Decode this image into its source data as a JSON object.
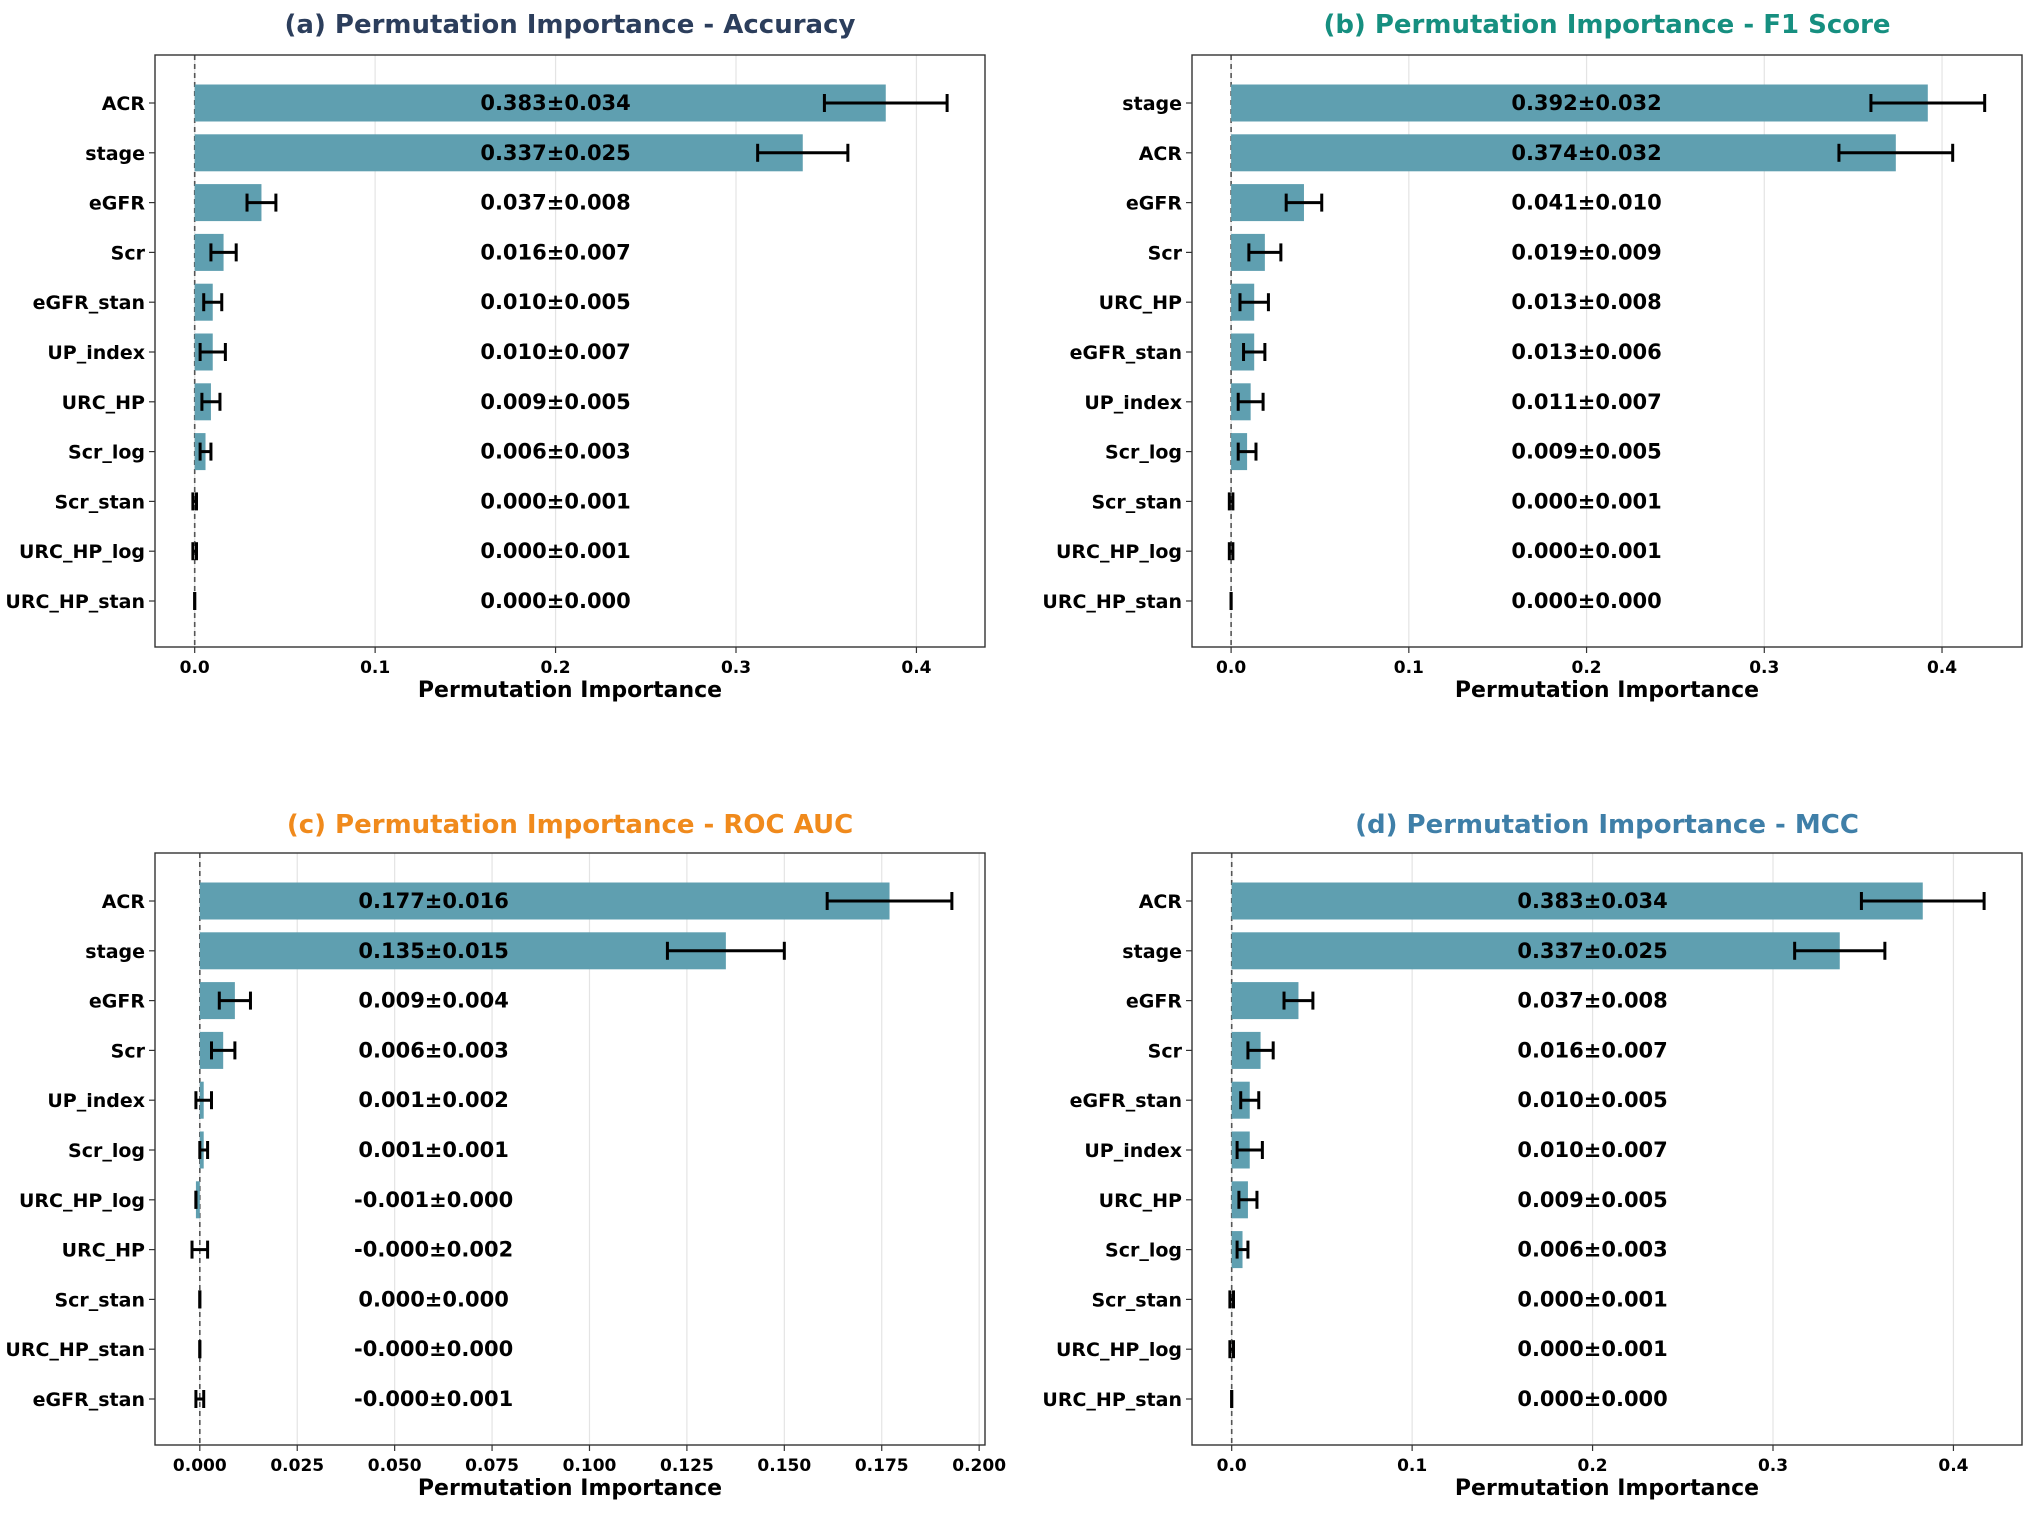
{
  "colors": {
    "bar": "#5f9fb0",
    "grid": "#e4e4e4",
    "axis": "#333333",
    "error": "#000000",
    "zero_line": "#555555"
  },
  "chart_data": [
    {
      "type": "bar",
      "orientation": "horizontal",
      "title": "(a) Permutation Importance - Accuracy",
      "title_color": "#2c3e5c",
      "xlabel": "Permutation Importance",
      "ylabel": "",
      "xlim": [
        -0.022,
        0.438
      ],
      "xticks": [
        0.0,
        0.1,
        0.2,
        0.3,
        0.4
      ],
      "xtick_labels": [
        "0.0",
        "0.1",
        "0.2",
        "0.3",
        "0.4"
      ],
      "grid": "x",
      "categories": [
        "ACR",
        "stage",
        "eGFR",
        "Scr",
        "eGFR_stan",
        "UP_index",
        "URC_HP",
        "Scr_log",
        "Scr_stan",
        "URC_HP_log",
        "URC_HP_stan"
      ],
      "values": [
        0.383,
        0.337,
        0.037,
        0.016,
        0.01,
        0.01,
        0.009,
        0.006,
        0.0,
        0.0,
        0.0
      ],
      "errors": [
        0.034,
        0.025,
        0.008,
        0.007,
        0.005,
        0.007,
        0.005,
        0.003,
        0.001,
        0.001,
        0.0
      ],
      "labels": [
        "0.383±0.034",
        "0.337±0.025",
        "0.037±0.008",
        "0.016±0.007",
        "0.010±0.005",
        "0.010±0.007",
        "0.009±0.005",
        "0.006±0.003",
        "0.000±0.001",
        "0.000±0.001",
        "0.000±0.000"
      ],
      "label_x_data": 0.2
    },
    {
      "type": "bar",
      "orientation": "horizontal",
      "title": "(b) Permutation Importance - F1 Score",
      "title_color": "#168f80",
      "xlabel": "Permutation Importance",
      "ylabel": "",
      "xlim": [
        -0.022,
        0.445
      ],
      "xticks": [
        0.0,
        0.1,
        0.2,
        0.3,
        0.4
      ],
      "xtick_labels": [
        "0.0",
        "0.1",
        "0.2",
        "0.3",
        "0.4"
      ],
      "grid": "x",
      "categories": [
        "stage",
        "ACR",
        "eGFR",
        "Scr",
        "URC_HP",
        "eGFR_stan",
        "UP_index",
        "Scr_log",
        "Scr_stan",
        "URC_HP_log",
        "URC_HP_stan"
      ],
      "values": [
        0.392,
        0.374,
        0.041,
        0.019,
        0.013,
        0.013,
        0.011,
        0.009,
        0.0,
        0.0,
        0.0
      ],
      "errors": [
        0.032,
        0.032,
        0.01,
        0.009,
        0.008,
        0.006,
        0.007,
        0.005,
        0.001,
        0.001,
        0.0
      ],
      "labels": [
        "0.392±0.032",
        "0.374±0.032",
        "0.041±0.010",
        "0.019±0.009",
        "0.013±0.008",
        "0.013±0.006",
        "0.011±0.007",
        "0.009±0.005",
        "0.000±0.001",
        "0.000±0.001",
        "0.000±0.000"
      ],
      "label_x_data": 0.2
    },
    {
      "type": "bar",
      "orientation": "horizontal",
      "title": "(c) Permutation Importance - ROC AUC",
      "title_color": "#f08a1c",
      "xlabel": "Permutation Importance",
      "ylabel": "",
      "xlim": [
        -0.0115,
        0.2015
      ],
      "xticks": [
        0.0,
        0.025,
        0.05,
        0.075,
        0.1,
        0.125,
        0.15,
        0.175,
        0.2
      ],
      "xtick_labels": [
        "0.000",
        "0.025",
        "0.050",
        "0.075",
        "0.100",
        "0.125",
        "0.150",
        "0.175",
        "0.200"
      ],
      "grid": "x",
      "categories": [
        "ACR",
        "stage",
        "eGFR",
        "Scr",
        "UP_index",
        "Scr_log",
        "URC_HP_log",
        "URC_HP",
        "Scr_stan",
        "URC_HP_stan",
        "eGFR_stan"
      ],
      "values": [
        0.177,
        0.135,
        0.009,
        0.006,
        0.001,
        0.001,
        -0.001,
        -0.0,
        0.0,
        -0.0,
        -0.0
      ],
      "errors": [
        0.016,
        0.015,
        0.004,
        0.003,
        0.002,
        0.001,
        0.0,
        0.002,
        0.0,
        0.0,
        0.001
      ],
      "labels": [
        "0.177±0.016",
        "0.135±0.015",
        "0.009±0.004",
        "0.006±0.003",
        "0.001±0.002",
        "0.001±0.001",
        "-0.001±0.000",
        "-0.000±0.002",
        "0.000±0.000",
        "-0.000±0.000",
        "-0.000±0.001"
      ],
      "label_x_data": 0.06
    },
    {
      "type": "bar",
      "orientation": "horizontal",
      "title": "(d) Permutation Importance - MCC",
      "title_color": "#3f7fa8",
      "xlabel": "Permutation Importance",
      "ylabel": "",
      "xlim": [
        -0.022,
        0.438
      ],
      "xticks": [
        0.0,
        0.1,
        0.2,
        0.3,
        0.4
      ],
      "xtick_labels": [
        "0.0",
        "0.1",
        "0.2",
        "0.3",
        "0.4"
      ],
      "grid": "x",
      "categories": [
        "ACR",
        "stage",
        "eGFR",
        "Scr",
        "eGFR_stan",
        "UP_index",
        "URC_HP",
        "Scr_log",
        "Scr_stan",
        "URC_HP_log",
        "URC_HP_stan"
      ],
      "values": [
        0.383,
        0.337,
        0.037,
        0.016,
        0.01,
        0.01,
        0.009,
        0.006,
        0.0,
        0.0,
        0.0
      ],
      "errors": [
        0.034,
        0.025,
        0.008,
        0.007,
        0.005,
        0.007,
        0.005,
        0.003,
        0.001,
        0.001,
        0.0
      ],
      "labels": [
        "0.383±0.034",
        "0.337±0.025",
        "0.037±0.008",
        "0.016±0.007",
        "0.010±0.005",
        "0.010±0.007",
        "0.009±0.005",
        "0.006±0.003",
        "0.000±0.001",
        "0.000±0.001",
        "0.000±0.000"
      ],
      "label_x_data": 0.2
    }
  ]
}
